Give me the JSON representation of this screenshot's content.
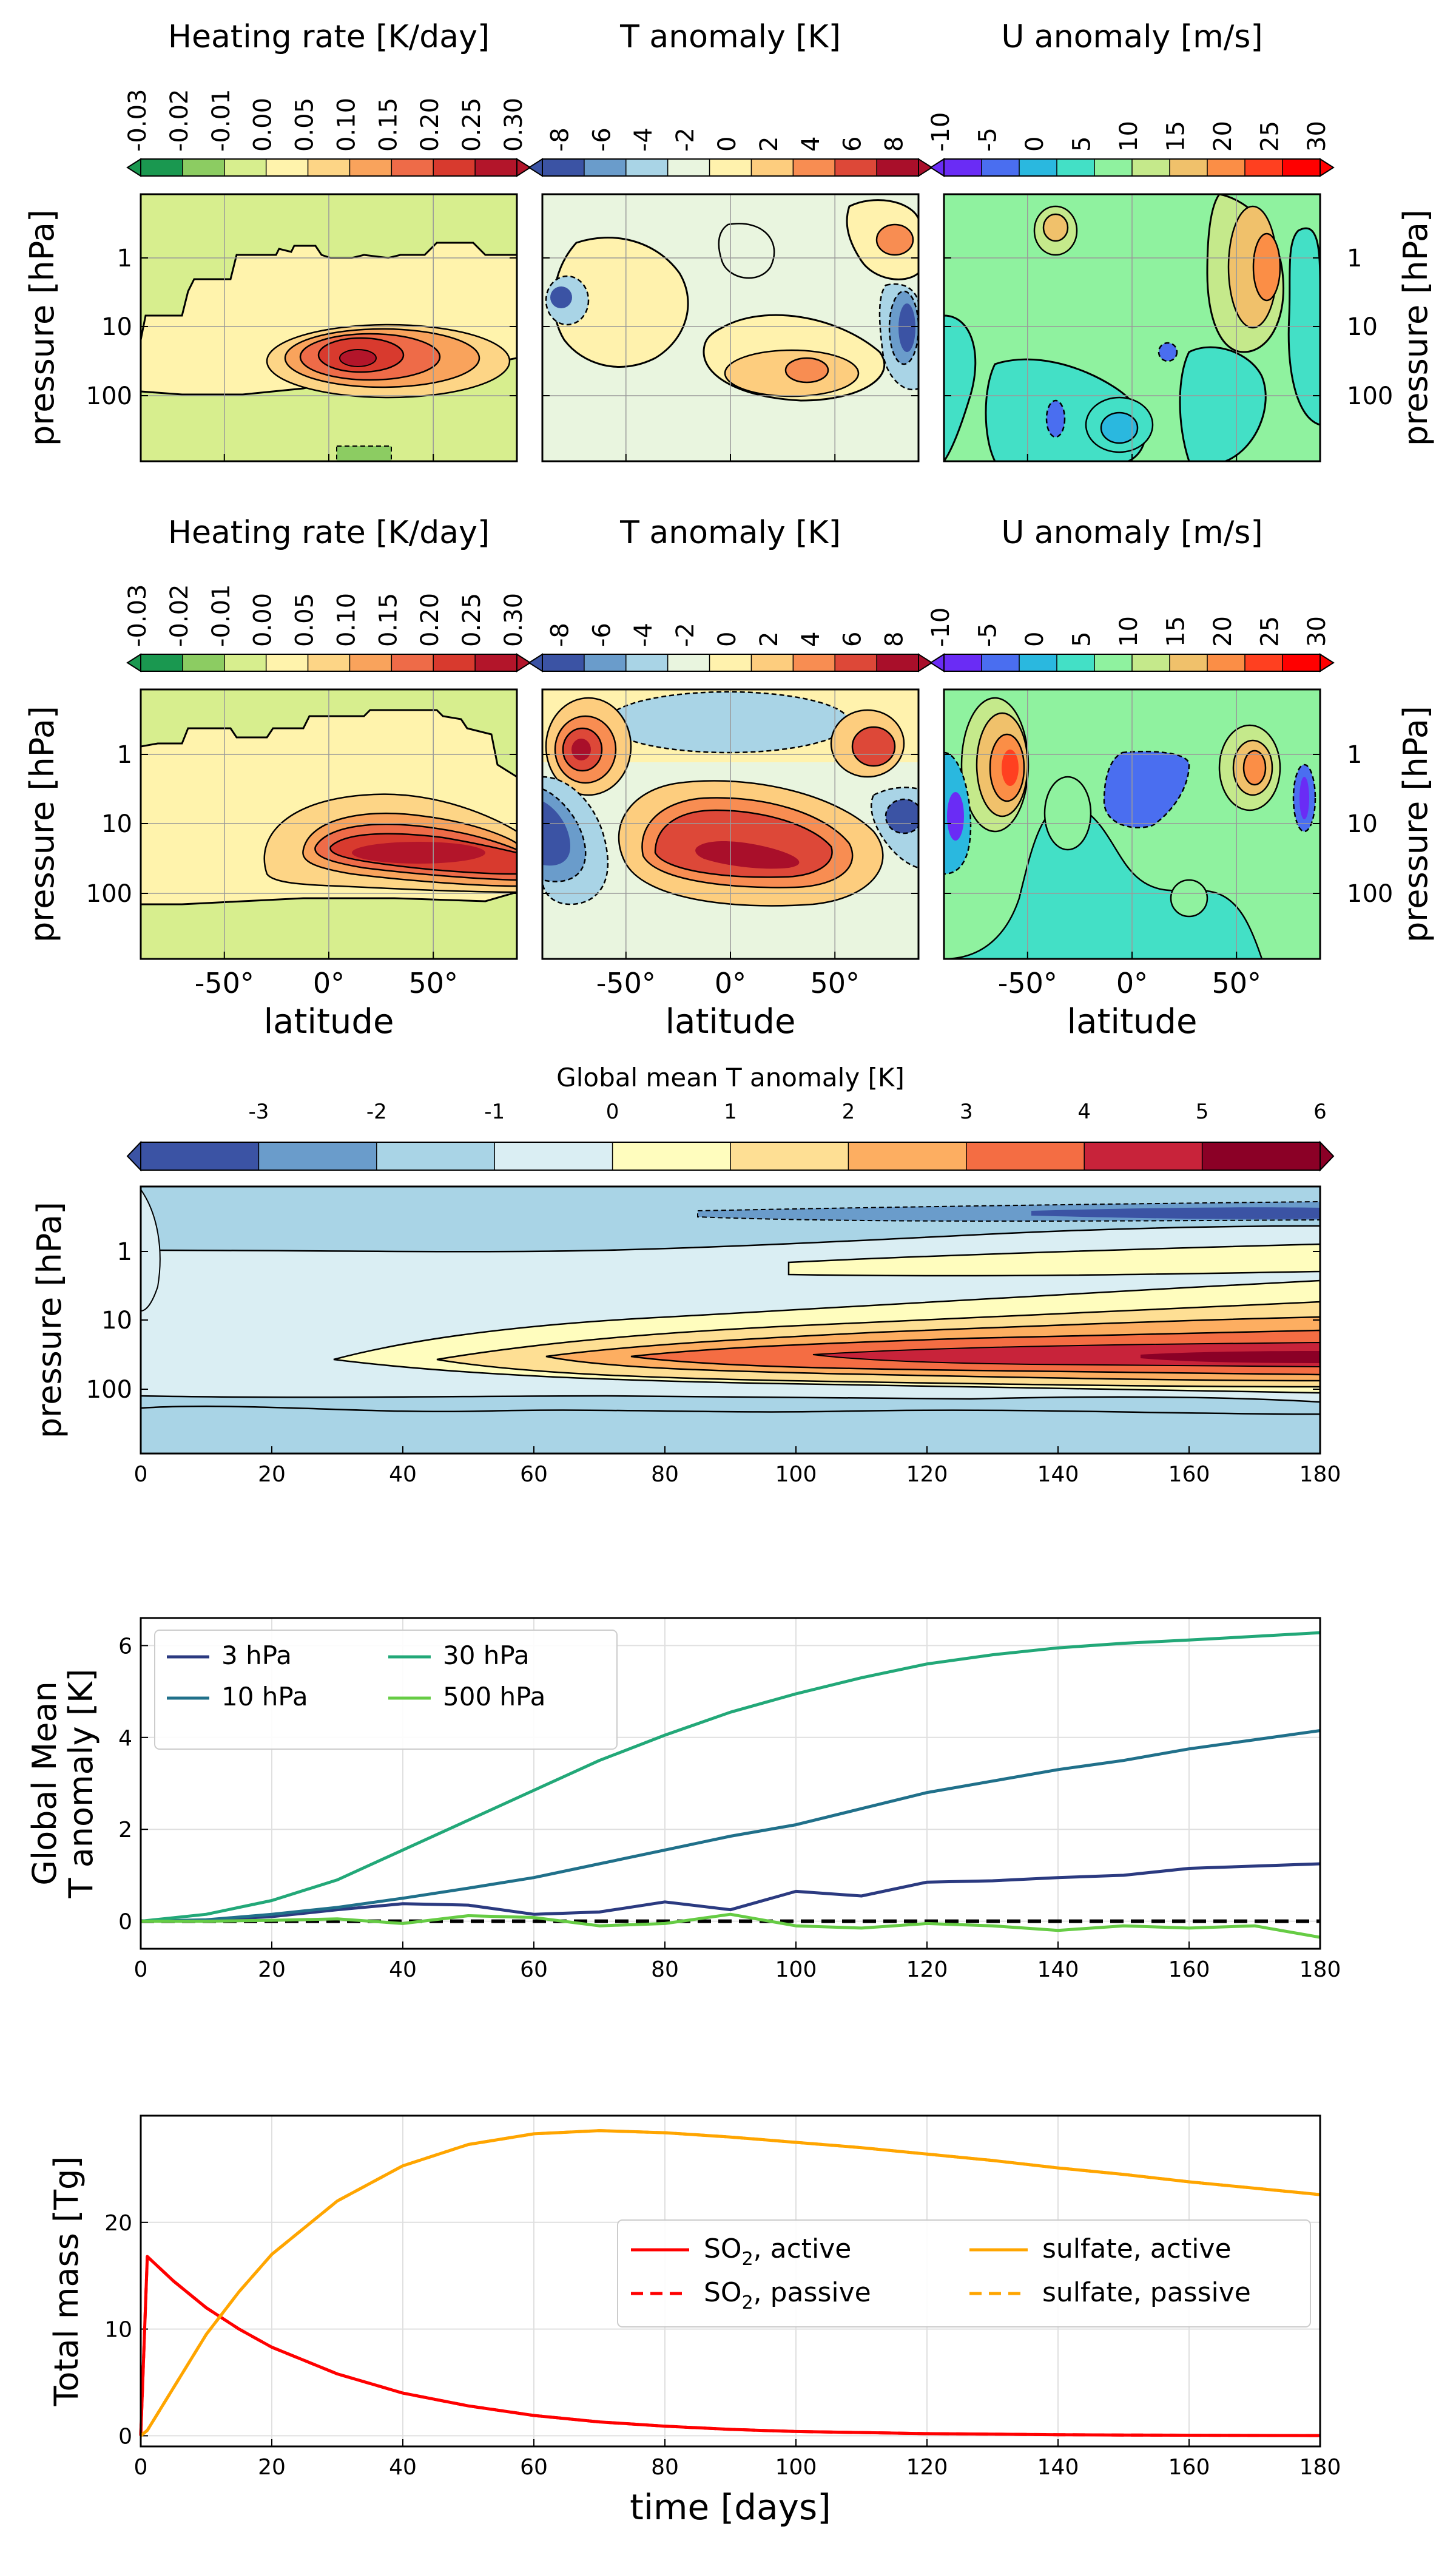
{
  "colors": {
    "heating": [
      "#1a9850",
      "#91cf60",
      "#d9ef8b",
      "#fee08b",
      "#fdae61",
      "#f46d43",
      "#e34a33",
      "#d73027",
      "#a50026"
    ],
    "heating_main": [
      "#1a9850",
      "#8ccc62",
      "#d7ee8e",
      "#fff3ac",
      "#fdd586",
      "#f9a35c",
      "#ee6b48",
      "#d83a2e",
      "#b3152a"
    ],
    "tanom": [
      "#3b53a4",
      "#6a9ccb",
      "#a9d4e6",
      "#e9f5df",
      "#fff2ad",
      "#fdcd7e",
      "#f88d52",
      "#dd4838",
      "#a90f2a"
    ],
    "uanom": [
      "#6a2cf5",
      "#4a6ef0",
      "#2ab8df",
      "#43e0c6",
      "#8ff29f",
      "#c5e98b",
      "#f0c16b",
      "#fb8e46",
      "#ff4020",
      "#ff0000"
    ],
    "gmt": [
      "#3b53a4",
      "#6a9ccb",
      "#a9d4e6",
      "#daeef3",
      "#fffdbe",
      "#fedf94",
      "#fdae61",
      "#f46d43",
      "#c8233a",
      "#8b0026"
    ],
    "series": {
      "3 hPa": "#2b3a80",
      "10 hPa": "#20708a",
      "30 hPa": "#22a878",
      "500 hPa": "#66cc44"
    },
    "so2": "#ff0000",
    "sulfate": "#ffa500"
  },
  "rows": [
    {
      "panels": [
        {
          "colorbar_title": "Heating  rate [K/day]",
          "colorbar_ticks": [
            "-0.03",
            "-0.02",
            "-0.01",
            "0.00",
            "0.05",
            "0.10",
            "0.15",
            "0.20",
            "0.25",
            "0.30"
          ],
          "ylabel_left": "pressure  [hPa]"
        },
        {
          "colorbar_title": "T anomaly [K]",
          "colorbar_ticks": [
            "-8",
            "-6",
            "-4",
            "-2",
            "0",
            "2",
            "4",
            "6",
            "8"
          ]
        },
        {
          "colorbar_title": "U anomaly [m/s]",
          "colorbar_ticks": [
            "-10",
            "-5",
            "0",
            "5",
            "10",
            "15",
            "20",
            "25",
            "30"
          ],
          "ylabel_right": "pressure  [hPa]"
        }
      ],
      "yticks": [
        "1",
        "10",
        "100"
      ]
    },
    {
      "panels": [
        {
          "colorbar_title": "Heating  rate [K/day]",
          "colorbar_ticks": [
            "-0.03",
            "-0.02",
            "-0.01",
            "0.00",
            "0.05",
            "0.10",
            "0.15",
            "0.20",
            "0.25",
            "0.30"
          ],
          "ylabel_left": "pressure  [hPa]",
          "xlabel": "latitude"
        },
        {
          "colorbar_title": "T anomaly [K]",
          "colorbar_ticks": [
            "-8",
            "-6",
            "-4",
            "-2",
            "0",
            "2",
            "4",
            "6",
            "8"
          ],
          "xlabel": "latitude"
        },
        {
          "colorbar_title": "U anomaly [m/s]",
          "colorbar_ticks": [
            "-10",
            "-5",
            "0",
            "5",
            "10",
            "15",
            "20",
            "25",
            "30"
          ],
          "ylabel_right": "pressure  [hPa]",
          "xlabel": "latitude"
        }
      ],
      "yticks": [
        "1",
        "10",
        "100"
      ],
      "xticks": [
        "-50°",
        "0°",
        "50°"
      ]
    }
  ],
  "chart_data": [
    {
      "type": "heatmap",
      "id": "heating-rate-top",
      "colorbar_title": "Heating  rate [K/day]",
      "levels": [
        -0.03,
        -0.02,
        -0.01,
        0.0,
        0.05,
        0.1,
        0.15,
        0.2,
        0.25,
        0.3
      ],
      "ylabel": "pressure  [hPa]",
      "x_range": [
        -90,
        90
      ],
      "yticks": [
        "1",
        "10",
        "100"
      ]
    },
    {
      "type": "heatmap",
      "id": "t-anomaly-top",
      "colorbar_title": "T anomaly [K]",
      "levels": [
        -8,
        -6,
        -4,
        -2,
        0,
        2,
        4,
        6,
        8
      ],
      "x_range": [
        -90,
        90
      ]
    },
    {
      "type": "heatmap",
      "id": "u-anomaly-top",
      "colorbar_title": "U anomaly [m/s]",
      "levels": [
        -10,
        -5,
        0,
        5,
        10,
        15,
        20,
        25,
        30
      ],
      "ylabel": "pressure  [hPa]",
      "x_range": [
        -90,
        90
      ]
    },
    {
      "type": "heatmap",
      "id": "heating-rate-bottom",
      "colorbar_title": "Heating  rate [K/day]",
      "levels": [
        -0.03,
        -0.02,
        -0.01,
        0.0,
        0.05,
        0.1,
        0.15,
        0.2,
        0.25,
        0.3
      ],
      "xlabel": "latitude",
      "ylabel": "pressure  [hPa]",
      "x_range": [
        -90,
        90
      ],
      "xticks": [
        "-50°",
        "0°",
        "50°"
      ]
    },
    {
      "type": "heatmap",
      "id": "t-anomaly-bottom",
      "colorbar_title": "T anomaly [K]",
      "levels": [
        -8,
        -6,
        -4,
        -2,
        0,
        2,
        4,
        6,
        8
      ],
      "xlabel": "latitude",
      "x_range": [
        -90,
        90
      ]
    },
    {
      "type": "heatmap",
      "id": "u-anomaly-bottom",
      "colorbar_title": "U anomaly [m/s]",
      "levels": [
        -10,
        -5,
        0,
        5,
        10,
        15,
        20,
        25,
        30
      ],
      "xlabel": "latitude",
      "ylabel": "pressure  [hPa]",
      "x_range": [
        -90,
        90
      ]
    },
    {
      "type": "heatmap",
      "id": "global-mean-t-anomaly",
      "colorbar_title": "Global mean T anomaly [K]",
      "colorbar_ticks": [
        "-3",
        "-2",
        "-1",
        "0",
        "1",
        "2",
        "3",
        "4",
        "5",
        "6"
      ],
      "ylabel": "pressure [hPa]",
      "yticks": [
        "1",
        "10",
        "100"
      ],
      "x_range": [
        0,
        180
      ],
      "xticks": [
        "0",
        "20",
        "40",
        "60",
        "80",
        "100",
        "120",
        "140",
        "160",
        "180"
      ]
    },
    {
      "type": "line",
      "id": "global-mean-t-timeseries",
      "ylabel_lines": [
        "Global Mean",
        "T anomaly [K]"
      ],
      "xlim": [
        0,
        180
      ],
      "ylim": [
        -0.6,
        6.6
      ],
      "xticks": [
        "0",
        "20",
        "40",
        "60",
        "80",
        "100",
        "120",
        "140",
        "160",
        "180"
      ],
      "yticks": [
        "0",
        "2",
        "4",
        "6"
      ],
      "grid": true,
      "legend": "top-left",
      "x": [
        0,
        10,
        20,
        30,
        40,
        50,
        60,
        70,
        80,
        90,
        100,
        110,
        120,
        130,
        140,
        150,
        160,
        170,
        180
      ],
      "series": [
        {
          "name": "3 hPa",
          "values": [
            0.0,
            0.02,
            0.1,
            0.25,
            0.38,
            0.35,
            0.15,
            0.2,
            0.42,
            0.25,
            0.65,
            0.55,
            0.85,
            0.88,
            0.95,
            1.0,
            1.15,
            1.2,
            1.25
          ]
        },
        {
          "name": "10 hPa",
          "values": [
            0.0,
            0.03,
            0.15,
            0.3,
            0.5,
            0.72,
            0.95,
            1.25,
            1.55,
            1.85,
            2.1,
            2.45,
            2.8,
            3.05,
            3.3,
            3.5,
            3.75,
            3.95,
            4.15
          ]
        },
        {
          "name": "30 hPa",
          "values": [
            0.0,
            0.15,
            0.45,
            0.9,
            1.55,
            2.2,
            2.85,
            3.5,
            4.05,
            4.55,
            4.95,
            5.3,
            5.6,
            5.8,
            5.95,
            6.05,
            6.12,
            6.2,
            6.28
          ]
        },
        {
          "name": "500 hPa",
          "values": [
            0.0,
            0.0,
            0.02,
            0.05,
            -0.05,
            0.12,
            0.08,
            -0.1,
            -0.05,
            0.15,
            -0.1,
            -0.15,
            -0.05,
            -0.1,
            -0.2,
            -0.1,
            -0.15,
            -0.1,
            -0.35
          ]
        }
      ],
      "reference_line": 0
    },
    {
      "type": "line",
      "id": "total-mass",
      "ylabel": "Total mass [Tg]",
      "xlabel": "time [days]",
      "xlim": [
        0,
        180
      ],
      "ylim": [
        -1,
        30
      ],
      "xticks": [
        "0",
        "20",
        "40",
        "60",
        "80",
        "100",
        "120",
        "140",
        "160",
        "180"
      ],
      "yticks": [
        "0",
        "10",
        "20"
      ],
      "grid": true,
      "legend": "center-right",
      "x": [
        0,
        1,
        5,
        10,
        15,
        20,
        30,
        40,
        50,
        60,
        70,
        80,
        90,
        100,
        110,
        120,
        130,
        140,
        150,
        160,
        170,
        180
      ],
      "series": [
        {
          "name": "SO2, active",
          "values": [
            0,
            16.8,
            14.5,
            12.0,
            10.0,
            8.3,
            5.8,
            4.0,
            2.8,
            1.9,
            1.3,
            0.9,
            0.6,
            0.4,
            0.3,
            0.2,
            0.15,
            0.1,
            0.07,
            0.05,
            0.03,
            0.02
          ]
        },
        {
          "name": "SO2, passive",
          "values": [
            0,
            16.8,
            14.5,
            12.0,
            10.0,
            8.3,
            5.8,
            4.0,
            2.8,
            1.9,
            1.3,
            0.9,
            0.6,
            0.4,
            0.3,
            0.2,
            0.15,
            0.1,
            0.07,
            0.05,
            0.03,
            0.02
          ]
        },
        {
          "name": "sulfate, active",
          "values": [
            0,
            0.5,
            4.5,
            9.5,
            13.5,
            17.0,
            22.0,
            25.3,
            27.3,
            28.3,
            28.6,
            28.4,
            28.0,
            27.5,
            27.0,
            26.4,
            25.8,
            25.1,
            24.5,
            23.8,
            23.2,
            22.6
          ]
        },
        {
          "name": "sulfate, passive",
          "values": [
            0,
            0.5,
            4.5,
            9.5,
            13.5,
            17.0,
            22.0,
            25.3,
            27.3,
            28.3,
            28.6,
            28.4,
            28.0,
            27.5,
            27.0,
            26.4,
            25.8,
            25.1,
            24.5,
            23.8,
            23.2,
            22.6
          ]
        }
      ]
    }
  ],
  "gm_panel": {
    "colorbar_title": "Global mean T anomaly [K]",
    "ylabel": "pressure [hPa]"
  },
  "ts_panel": {
    "ylabel_1": "Global Mean",
    "ylabel_2": "T anomaly [K]"
  },
  "mass_panel": {
    "ylabel": "Total mass [Tg]",
    "xlabel": "time [days]",
    "legend": [
      {
        "label_main": "SO",
        "label_sub": "2",
        "label_rest": ", active",
        "style": "solid",
        "color": "#ff0000"
      },
      {
        "label_main": "SO",
        "label_sub": "2",
        "label_rest": ", passive",
        "style": "dashed",
        "color": "#ff0000"
      },
      {
        "label_main": "sulfate, active",
        "label_sub": "",
        "label_rest": "",
        "style": "solid",
        "color": "#ffa500"
      },
      {
        "label_main": "sulfate, passive",
        "label_sub": "",
        "label_rest": "",
        "style": "dashed",
        "color": "#ffa500"
      }
    ]
  }
}
